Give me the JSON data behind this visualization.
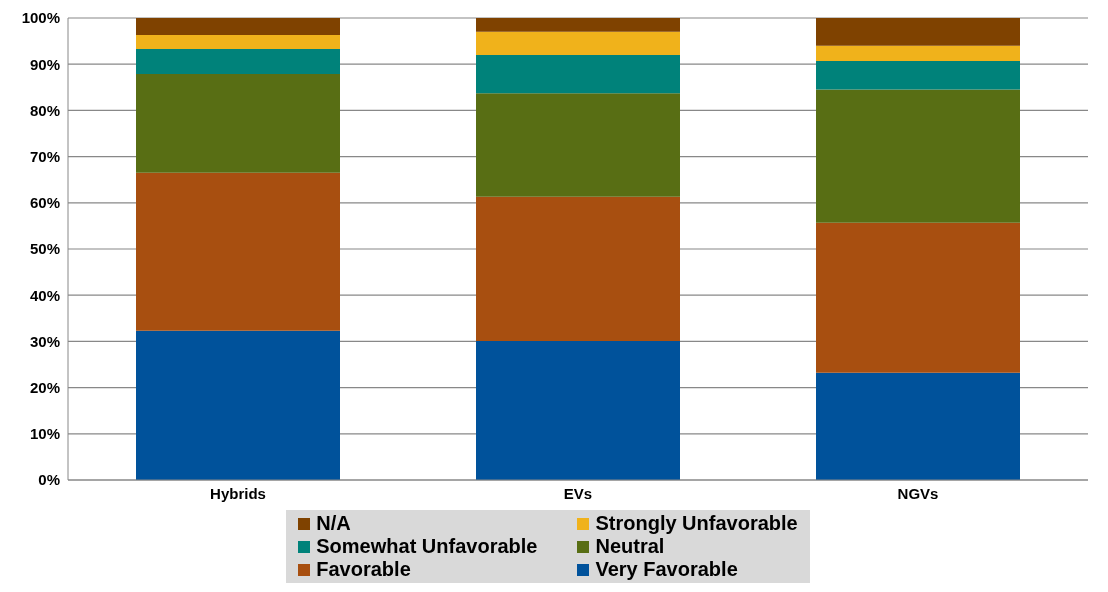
{
  "chart_data": {
    "type": "bar",
    "stacked": true,
    "categories": [
      "Hybrids",
      "EVs",
      "NGVs"
    ],
    "series": [
      {
        "name": "Very Favorable",
        "color": "#00529b",
        "values": [
          32.3,
          30.1,
          23.2
        ]
      },
      {
        "name": "Favorable",
        "color": "#a84f10",
        "values": [
          34.2,
          31.2,
          32.5
        ]
      },
      {
        "name": "Neutral",
        "color": "#586e14",
        "values": [
          21.4,
          22.4,
          28.8
        ]
      },
      {
        "name": "Somewhat Unfavorable",
        "color": "#00827a",
        "values": [
          5.4,
          8.3,
          6.2
        ]
      },
      {
        "name": "Strongly Unfavorable",
        "color": "#f0b21b",
        "values": [
          3.0,
          5.0,
          3.3
        ]
      },
      {
        "name": "N/A",
        "color": "#7f4200",
        "values": [
          3.7,
          3.0,
          6.0
        ]
      }
    ],
    "ylim": [
      0,
      100
    ],
    "yticks": [
      {
        "value": 0,
        "label": "0%"
      },
      {
        "value": 10,
        "label": "10%"
      },
      {
        "value": 20,
        "label": "20%"
      },
      {
        "value": 30,
        "label": "30%"
      },
      {
        "value": 40,
        "label": "40%"
      },
      {
        "value": 50,
        "label": "50%"
      },
      {
        "value": 60,
        "label": "60%"
      },
      {
        "value": 70,
        "label": "70%"
      },
      {
        "value": 80,
        "label": "80%"
      },
      {
        "value": 90,
        "label": "90%"
      },
      {
        "value": 100,
        "label": "100%"
      }
    ],
    "grid": "y",
    "legend": "bottom"
  }
}
